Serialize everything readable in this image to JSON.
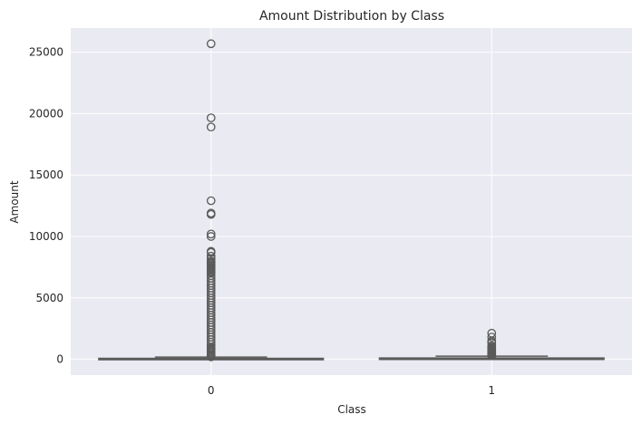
{
  "chart_data": {
    "type": "box",
    "title": "Amount Distribution by Class",
    "xlabel": "Class",
    "ylabel": "Amount",
    "categories": [
      "0",
      "1"
    ],
    "ylim": [
      -1284,
      26964
    ],
    "yticks": [
      0,
      5000,
      10000,
      15000,
      20000,
      25000
    ],
    "grid": true,
    "background": "#eaeaf2",
    "box_color": "#5a5a5a",
    "boxes": [
      {
        "category": "0",
        "whisker_low": 0,
        "q1": 5.6,
        "median": 22,
        "q3": 77,
        "whisker_high": 185,
        "outliers": [
          25691,
          19656,
          18910,
          12910,
          11898,
          11790,
          10200,
          10000,
          8790,
          8700,
          8400,
          8200,
          8000,
          7900,
          7800,
          7700,
          7600,
          7500,
          7400,
          7300,
          7200,
          7100,
          7000,
          6800,
          6600,
          6400,
          6200,
          6000,
          5800,
          5600,
          5400,
          5200,
          5000,
          4800,
          4600,
          4400,
          4200,
          4000,
          3800,
          3600,
          3400,
          3200,
          3000,
          2800,
          2600,
          2400,
          2200,
          2000,
          1800,
          1600,
          1400,
          1200,
          1000,
          900,
          800,
          700,
          600,
          500,
          400,
          300,
          250,
          200
        ]
      },
      {
        "category": "1",
        "whisker_low": 0,
        "q1": 1,
        "median": 9.3,
        "q3": 106,
        "whisker_high": 260,
        "outliers": [
          2126,
          1810,
          1500,
          1390,
          1350,
          1100,
          1000,
          950,
          900,
          850,
          800,
          750,
          700,
          650,
          600,
          550,
          500,
          450,
          400,
          350,
          320,
          300
        ]
      }
    ]
  }
}
